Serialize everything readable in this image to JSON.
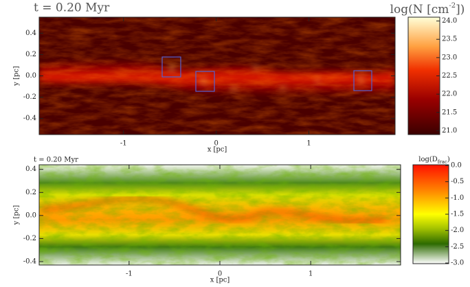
{
  "chart_data": [
    {
      "type": "heatmap",
      "title": "t = 0.20 Myr",
      "xlabel": "x [pc]",
      "ylabel": "y [pc]",
      "xlim": [
        -1.91,
        1.93
      ],
      "xticks": [
        -1,
        0,
        1
      ],
      "ylim": [
        -0.55,
        0.55
      ],
      "yticks": [
        {
          "value": 0.4,
          "label": "0.4"
        },
        {
          "value": 0.2,
          "label": "0.2"
        },
        {
          "value": 0,
          "label": "0.0"
        },
        {
          "value": -0.2,
          "label": "-0.2"
        },
        {
          "value": -0.4,
          "label": "-0.4"
        }
      ],
      "colorbar_label": [
        "log(N [cm",
        "-2",
        "])"
      ],
      "clim": [
        20.97,
        24.03
      ],
      "cticks": [
        {
          "value": 24,
          "label": "24.0"
        },
        {
          "value": 23.5,
          "label": "23.5"
        },
        {
          "value": 23,
          "label": "23.0"
        },
        {
          "value": 22.5,
          "label": "22.5"
        },
        {
          "value": 22,
          "label": "22.0"
        },
        {
          "value": 21.5,
          "label": "21.5"
        },
        {
          "value": 21,
          "label": "21.0"
        }
      ]
    },
    {
      "type": "heatmap",
      "title": "t = 0.20 Myr",
      "xlabel": "x [pc]",
      "ylabel": "y [pc]",
      "xlim": [
        -1.99,
        1.99
      ],
      "xticks": [
        -1,
        0,
        1
      ],
      "ylim": [
        -0.43,
        0.44
      ],
      "yticks": [
        {
          "value": 0.4,
          "label": "0.4"
        },
        {
          "value": 0.2,
          "label": "0.2"
        },
        {
          "value": 0,
          "label": "0.0"
        },
        {
          "value": -0.2,
          "label": "-0.2"
        },
        {
          "value": -0.4,
          "label": "-0.4"
        }
      ],
      "colorbar_label": [
        "log(D",
        "frac",
        ")"
      ],
      "clim": [
        -3.02,
        0.02
      ],
      "cticks": [
        {
          "value": 0,
          "label": "0.0"
        },
        {
          "value": -0.5,
          "label": "-0.5"
        },
        {
          "value": -1,
          "label": "-1.0"
        },
        {
          "value": -1.5,
          "label": "-1.5"
        },
        {
          "value": -2,
          "label": "-2.0"
        },
        {
          "value": -2.5,
          "label": "-2.5"
        },
        {
          "value": -3,
          "label": "-3.0"
        }
      ]
    }
  ]
}
